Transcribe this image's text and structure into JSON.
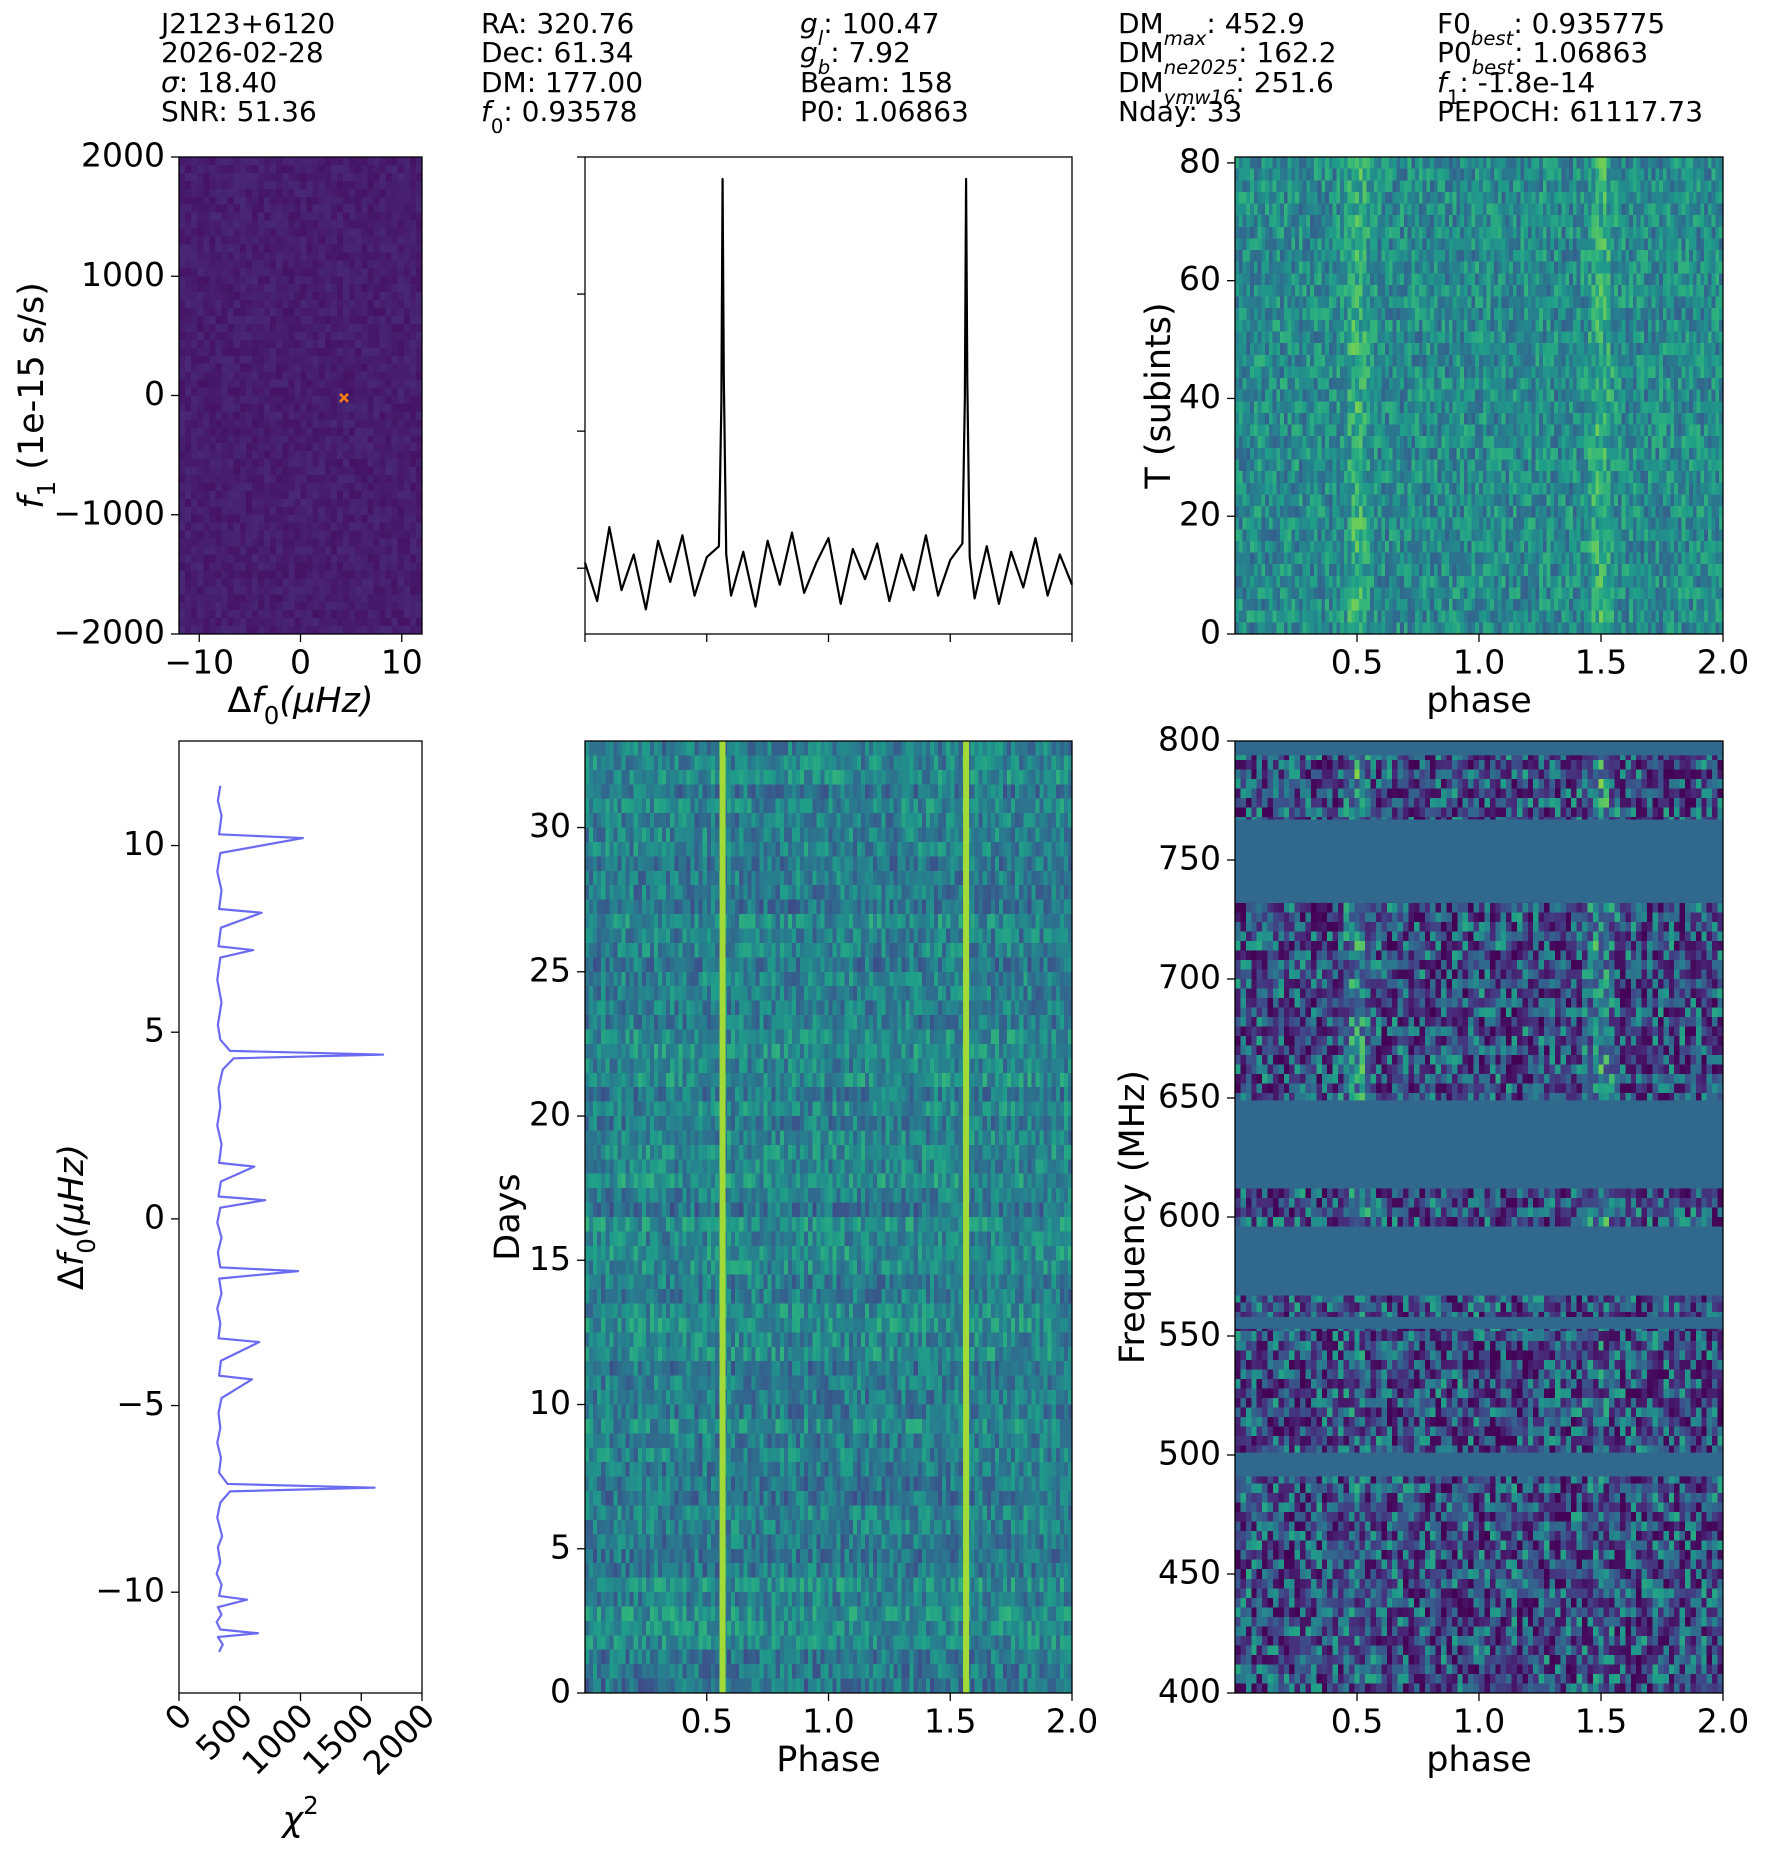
{
  "header": {
    "columns": [
      [
        [
          {
            "t": "J2123+6120"
          }
        ],
        [
          {
            "t": "2026-02-28"
          }
        ],
        [
          {
            "t": "σ",
            "i": true
          },
          {
            "t": ": 18.40"
          }
        ],
        [
          {
            "t": "SNR: 51.36"
          }
        ]
      ],
      [
        [
          {
            "t": "RA: 320.76"
          }
        ],
        [
          {
            "t": "Dec: 61.34"
          }
        ],
        [
          {
            "t": "DM: 177.00"
          }
        ],
        [
          {
            "t": "f",
            "i": true
          },
          {
            "t": "0",
            "sub": true
          },
          {
            "t": ": 0.93578"
          }
        ]
      ],
      [
        [
          {
            "t": "g",
            "i": true
          },
          {
            "t": "l",
            "sub": true,
            "i": true
          },
          {
            "t": ": 100.47"
          }
        ],
        [
          {
            "t": "g",
            "i": true
          },
          {
            "t": "b",
            "sub": true,
            "i": true
          },
          {
            "t": ": 7.92"
          }
        ],
        [
          {
            "t": "Beam: 158"
          }
        ],
        [
          {
            "t": "P0: 1.06863"
          }
        ]
      ],
      [
        [
          {
            "t": "DM"
          },
          {
            "t": "max",
            "sub": true,
            "i": true
          },
          {
            "t": ": 452.9"
          }
        ],
        [
          {
            "t": "DM"
          },
          {
            "t": "ne2025",
            "sub": true,
            "i": true
          },
          {
            "t": ": 162.2"
          }
        ],
        [
          {
            "t": "DM"
          },
          {
            "t": "ymw16",
            "sub": true,
            "i": true
          },
          {
            "t": ": 251.6"
          }
        ],
        [
          {
            "t": "Nday: 33"
          }
        ]
      ],
      [
        [
          {
            "t": "F0"
          },
          {
            "t": "best",
            "sub": true,
            "i": true
          },
          {
            "t": ": 0.935775"
          }
        ],
        [
          {
            "t": "P0"
          },
          {
            "t": "best",
            "sub": true,
            "i": true
          },
          {
            "t": ": 1.06863"
          }
        ],
        [
          {
            "t": "f",
            "i": true
          },
          {
            "t": "1",
            "sub": true
          },
          {
            "t": ": -1.8e-14"
          }
        ],
        [
          {
            "t": "PEPOCH: 61117.73"
          }
        ]
      ]
    ]
  },
  "chart_data": [
    {
      "type": "heatmap",
      "xlabel": [
        {
          "t": "Δ"
        },
        {
          "t": "f",
          "i": true
        },
        {
          "t": "0",
          "sub": true
        },
        {
          "t": "(μHz)",
          "i": true
        }
      ],
      "ylabel": [
        {
          "t": "f",
          "i": true
        },
        {
          "t": "1",
          "sub": true
        },
        {
          "t": " (1e-15 s/s)"
        }
      ],
      "xlim": [
        -12,
        12
      ],
      "xticks": [
        {
          "value": -10,
          "label": "−10"
        },
        0,
        10
      ],
      "ylim": [
        -2000,
        2000
      ],
      "yticks": [
        {
          "value": -2000,
          "label": "−2000"
        },
        {
          "value": -1000,
          "label": "−1000"
        },
        0,
        1000,
        2000
      ],
      "marker": {
        "x": 4.3,
        "y": -20,
        "color": "#ff7f0e"
      }
    },
    {
      "type": "line",
      "color": "#000000",
      "x": [
        0,
        0.05,
        0.1,
        0.15,
        0.2,
        0.25,
        0.3,
        0.35,
        0.4,
        0.45,
        0.5,
        0.55,
        0.56,
        0.565,
        0.57,
        0.58,
        0.6,
        0.65,
        0.7,
        0.75,
        0.8,
        0.85,
        0.9,
        0.95,
        1.0,
        1.05,
        1.1,
        1.15,
        1.2,
        1.25,
        1.3,
        1.35,
        1.4,
        1.45,
        1.5,
        1.55,
        1.56,
        1.565,
        1.57,
        1.58,
        1.6,
        1.65,
        1.7,
        1.75,
        1.8,
        1.85,
        1.9,
        1.95,
        2.0
      ],
      "values": [
        0.02,
        -0.12,
        0.15,
        -0.08,
        0.05,
        -0.15,
        0.1,
        -0.05,
        0.12,
        -0.1,
        0.04,
        0.08,
        0.6,
        1.42,
        0.7,
        0.05,
        -0.1,
        0.06,
        -0.14,
        0.1,
        -0.06,
        0.13,
        -0.09,
        0.02,
        0.11,
        -0.13,
        0.07,
        -0.04,
        0.09,
        -0.12,
        0.05,
        -0.08,
        0.12,
        -0.1,
        0.03,
        0.09,
        0.62,
        1.42,
        0.68,
        0.04,
        -0.11,
        0.08,
        -0.13,
        0.06,
        -0.07,
        0.11,
        -0.1,
        0.05,
        -0.06
      ],
      "xlim": [
        0,
        2
      ],
      "xticks": [
        0,
        0.5,
        1,
        1.5,
        2
      ],
      "ylim": [
        -0.24,
        1.5
      ],
      "yticks": [
        0,
        0.5,
        1,
        1.5
      ],
      "tick_labels": false
    },
    {
      "type": "heatmap",
      "xlabel": [
        {
          "t": "phase"
        }
      ],
      "ylabel": [
        {
          "t": "T (subints)"
        }
      ],
      "xlim": [
        0,
        2
      ],
      "xticks": [
        0.5,
        {
          "value": 1,
          "label": "1.0"
        },
        1.5,
        {
          "value": 2,
          "label": "2.0"
        }
      ],
      "ylim": [
        0,
        81
      ],
      "yticks": [
        0,
        20,
        40,
        60,
        80
      ],
      "pulse_phases": [
        0.5,
        1.5
      ]
    },
    {
      "type": "line",
      "orientation": "horizontal",
      "color": "#6b6bf2",
      "xlabel": [
        {
          "t": "χ",
          "i": true
        },
        {
          "t": "2",
          "sup": true
        }
      ],
      "ylabel": [
        {
          "t": "Δ"
        },
        {
          "t": "f",
          "i": true
        },
        {
          "t": "0",
          "sub": true
        },
        {
          "t": "(μHz)",
          "i": true
        }
      ],
      "y": [
        -11.6,
        -11.4,
        -11.2,
        -11.1,
        -11.0,
        -10.8,
        -10.6,
        -10.4,
        -10.2,
        -10.1,
        -9.8,
        -9.5,
        -9.2,
        -8.8,
        -8.5,
        -8.0,
        -7.6,
        -7.3,
        -7.2,
        -7.1,
        -6.8,
        -6.4,
        -6.0,
        -5.6,
        -5.2,
        -4.8,
        -4.3,
        -4.2,
        -3.8,
        -3.3,
        -3.2,
        -2.8,
        -2.4,
        -2.0,
        -1.6,
        -1.4,
        -1.3,
        -0.9,
        -0.5,
        -0.1,
        0.3,
        0.5,
        0.6,
        1.0,
        1.4,
        1.5,
        2.0,
        2.5,
        3.0,
        3.5,
        4.0,
        4.3,
        4.4,
        4.5,
        4.8,
        5.2,
        5.8,
        6.4,
        7.0,
        7.2,
        7.3,
        7.8,
        8.2,
        8.3,
        8.8,
        9.3,
        9.8,
        10.2,
        10.3,
        10.8,
        11.2,
        11.6
      ],
      "values": [
        330,
        360,
        320,
        650,
        340,
        310,
        350,
        320,
        560,
        330,
        350,
        310,
        340,
        320,
        355,
        315,
        340,
        420,
        1610,
        400,
        330,
        345,
        315,
        340,
        325,
        350,
        600,
        330,
        345,
        660,
        325,
        340,
        315,
        350,
        330,
        980,
        340,
        320,
        350,
        315,
        340,
        710,
        325,
        345,
        620,
        330,
        350,
        315,
        340,
        325,
        360,
        450,
        1680,
        420,
        340,
        320,
        350,
        315,
        340,
        610,
        325,
        345,
        680,
        330,
        350,
        315,
        340,
        1020,
        330,
        350,
        320,
        340
      ],
      "xlim": [
        0,
        2000
      ],
      "xticks": [
        0,
        500,
        1000,
        1500,
        2000
      ],
      "xtick_rotation": 45,
      "ylim": [
        -12.7,
        12.8
      ],
      "yticks": [
        {
          "value": -10,
          "label": "−10"
        },
        {
          "value": -5,
          "label": "−5"
        },
        0,
        5,
        10
      ]
    },
    {
      "type": "heatmap",
      "xlabel": [
        {
          "t": "Phase"
        }
      ],
      "ylabel": [
        {
          "t": "Days"
        }
      ],
      "xlim": [
        0,
        2
      ],
      "xticks": [
        0.5,
        {
          "value": 1,
          "label": "1.0"
        },
        1.5,
        {
          "value": 2,
          "label": "2.0"
        }
      ],
      "ylim": [
        0,
        33
      ],
      "yticks": [
        0,
        5,
        10,
        15,
        20,
        25,
        30
      ],
      "pulse_phases": [
        0.565,
        1.565
      ],
      "pulse_line": true
    },
    {
      "type": "heatmap",
      "xlabel": [
        {
          "t": "phase"
        }
      ],
      "ylabel": [
        {
          "t": "Frequency (MHz)"
        }
      ],
      "xlim": [
        0,
        2
      ],
      "xticks": [
        0.5,
        {
          "value": 1,
          "label": "1.0"
        },
        1.5,
        {
          "value": 2,
          "label": "2.0"
        }
      ],
      "ylim": [
        400,
        800
      ],
      "yticks": [
        400,
        450,
        500,
        550,
        600,
        650,
        700,
        750,
        800
      ],
      "pulse_phases": [
        0.5,
        1.5
      ],
      "masked_bands": [
        [
          794,
          800
        ],
        [
          732,
          767
        ],
        [
          612,
          649
        ],
        [
          567,
          596
        ],
        [
          553,
          558
        ],
        [
          491,
          501
        ]
      ],
      "mask_color": "#31688e"
    }
  ]
}
